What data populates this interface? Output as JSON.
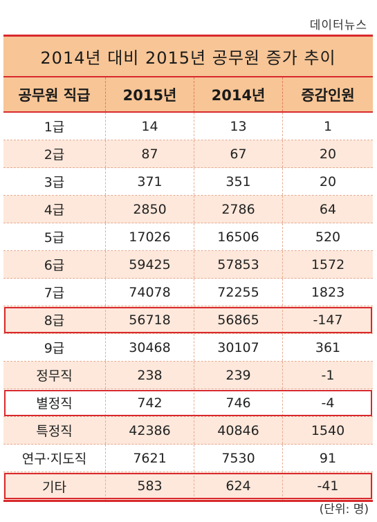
{
  "source": "데이터뉴스",
  "table": {
    "title": "2014년 대비 2015년 공무원 증가 추이",
    "headers": [
      "공무원 직급",
      "2015년",
      "2014년",
      "증감인원"
    ],
    "rows": [
      {
        "grade": "1급",
        "y2015": "14",
        "y2014": "13",
        "change": "1",
        "highlighted": false
      },
      {
        "grade": "2급",
        "y2015": "87",
        "y2014": "67",
        "change": "20",
        "highlighted": false
      },
      {
        "grade": "3급",
        "y2015": "371",
        "y2014": "351",
        "change": "20",
        "highlighted": false
      },
      {
        "grade": "4급",
        "y2015": "2850",
        "y2014": "2786",
        "change": "64",
        "highlighted": false
      },
      {
        "grade": "5급",
        "y2015": "17026",
        "y2014": "16506",
        "change": "520",
        "highlighted": false
      },
      {
        "grade": "6급",
        "y2015": "59425",
        "y2014": "57853",
        "change": "1572",
        "highlighted": false
      },
      {
        "grade": "7급",
        "y2015": "74078",
        "y2014": "72255",
        "change": "1823",
        "highlighted": false
      },
      {
        "grade": "8급",
        "y2015": "56718",
        "y2014": "56865",
        "change": "-147",
        "highlighted": true
      },
      {
        "grade": "9급",
        "y2015": "30468",
        "y2014": "30107",
        "change": "361",
        "highlighted": false
      },
      {
        "grade": "정무직",
        "y2015": "238",
        "y2014": "239",
        "change": "-1",
        "highlighted": false
      },
      {
        "grade": "별정직",
        "y2015": "742",
        "y2014": "746",
        "change": "-4",
        "highlighted": true
      },
      {
        "grade": "특정직",
        "y2015": "42386",
        "y2014": "40846",
        "change": "1540",
        "highlighted": false
      },
      {
        "grade": "연구·지도직",
        "y2015": "7621",
        "y2014": "7530",
        "change": "91",
        "highlighted": false
      },
      {
        "grade": "기타",
        "y2015": "583",
        "y2014": "624",
        "change": "-41",
        "highlighted": true
      }
    ]
  },
  "unit": "(단위: 명)",
  "colors": {
    "accent_red": "#d8282c",
    "header_fill": "#f7c596",
    "row_shade": "#fde8db"
  }
}
